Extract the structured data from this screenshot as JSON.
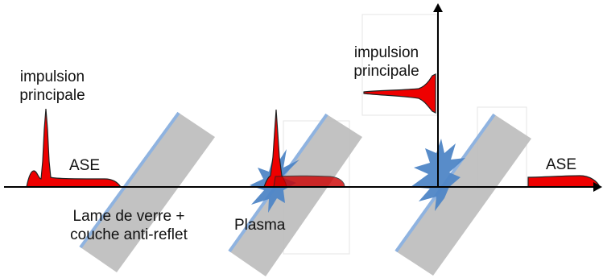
{
  "labels": {
    "main_pulse_line1": "impulsion",
    "main_pulse_line2": "principale",
    "ase_left": "ASE",
    "plate_line1": "Lame de verre +",
    "plate_line2": "couche anti-reflet",
    "plasma": "Plasma",
    "reflected_pulse_line1": "impulsion",
    "reflected_pulse_line2": "principale",
    "ase_right": "ASE"
  },
  "colors": {
    "pulse_red": "#ee0000",
    "plasma_blue": "#4f86c6",
    "plate_gray": "#bdbdbd",
    "coating_blue": "#8fb3e0",
    "axis_black": "#000000"
  }
}
